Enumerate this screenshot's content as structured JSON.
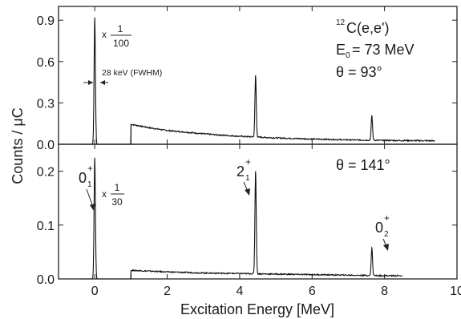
{
  "chart_data": [
    {
      "type": "line",
      "panel": "top",
      "xlim": [
        -1,
        10
      ],
      "ylim": [
        0,
        1.0
      ],
      "yticks": [
        {
          "label": "0.0",
          "value": 0
        },
        {
          "label": "0.3",
          "value": 0.3
        },
        {
          "label": "0.6",
          "value": 0.6
        },
        {
          "label": "0.9",
          "value": 0.9
        }
      ],
      "series": [
        {
          "baseline": [
            [
              1.0,
              0.145
            ],
            [
              1.5,
              0.12
            ],
            [
              2,
              0.1
            ],
            [
              2.5,
              0.088
            ],
            [
              3,
              0.076
            ],
            [
              3.5,
              0.066
            ],
            [
              4,
              0.058
            ],
            [
              4.5,
              0.052
            ],
            [
              5,
              0.046
            ],
            [
              5.5,
              0.042
            ],
            [
              6,
              0.038
            ],
            [
              6.5,
              0.035
            ],
            [
              7,
              0.032
            ],
            [
              7.5,
              0.03
            ],
            [
              8,
              0.028
            ],
            [
              8.5,
              0.027
            ],
            [
              9,
              0.026
            ],
            [
              9.4,
              0.025
            ]
          ],
          "peaks": [
            {
              "x": 0.0,
              "y": 0.92,
              "w": 0.018
            },
            {
              "x": 4.44,
              "y": 0.5,
              "w": 0.018
            },
            {
              "x": 7.65,
              "y": 0.21,
              "w": 0.018
            }
          ]
        }
      ],
      "annotations": {
        "scale_times": "x",
        "scale_num": "1",
        "scale_den": "100",
        "fwhm": "28 keV (FWHM)",
        "reaction_mass": "12",
        "reaction": "C(e,e')",
        "energy_lhs": "E",
        "energy_sub": "0",
        "energy_rhs": "= 73 MeV",
        "angle": "θ  = 93°"
      }
    },
    {
      "type": "line",
      "panel": "bottom",
      "xlim": [
        -1,
        10
      ],
      "ylim": [
        0,
        0.25
      ],
      "yticks": [
        {
          "label": "0.0",
          "value": 0
        },
        {
          "label": "0.1",
          "value": 0.1
        },
        {
          "label": "0.2",
          "value": 0.2
        }
      ],
      "series": [
        {
          "baseline": [
            [
              1.0,
              0.016
            ],
            [
              2,
              0.013
            ],
            [
              3,
              0.011
            ],
            [
              4,
              0.01
            ],
            [
              5,
              0.009
            ],
            [
              6,
              0.008
            ],
            [
              7,
              0.007
            ],
            [
              8,
              0.006
            ],
            [
              8.5,
              0.006
            ]
          ],
          "peaks": [
            {
              "x": 0.0,
              "y": 0.225,
              "w": 0.018
            },
            {
              "x": 4.44,
              "y": 0.2,
              "w": 0.018
            },
            {
              "x": 7.65,
              "y": 0.058,
              "w": 0.018
            }
          ]
        }
      ],
      "annotations": {
        "scale_times": "x",
        "scale_num": "1",
        "scale_den": "30",
        "angle": "θ  = 141°",
        "state1_main": "0",
        "state1_sup": "+",
        "state1_sub": "1",
        "state2_main": "2",
        "state2_sup": "+",
        "state2_sub": "1",
        "state3_main": "0",
        "state3_sup": "+",
        "state3_sub": "2"
      }
    }
  ],
  "xaxis": {
    "label": "Excitation Energy [MeV]",
    "ticks": [
      {
        "label": "0",
        "value": 0
      },
      {
        "label": "2",
        "value": 2
      },
      {
        "label": "4",
        "value": 4
      },
      {
        "label": "6",
        "value": 6
      },
      {
        "label": "8",
        "value": 8
      },
      {
        "label": "10",
        "value": 10
      }
    ]
  },
  "yaxis": {
    "label": "Counts / μC"
  }
}
